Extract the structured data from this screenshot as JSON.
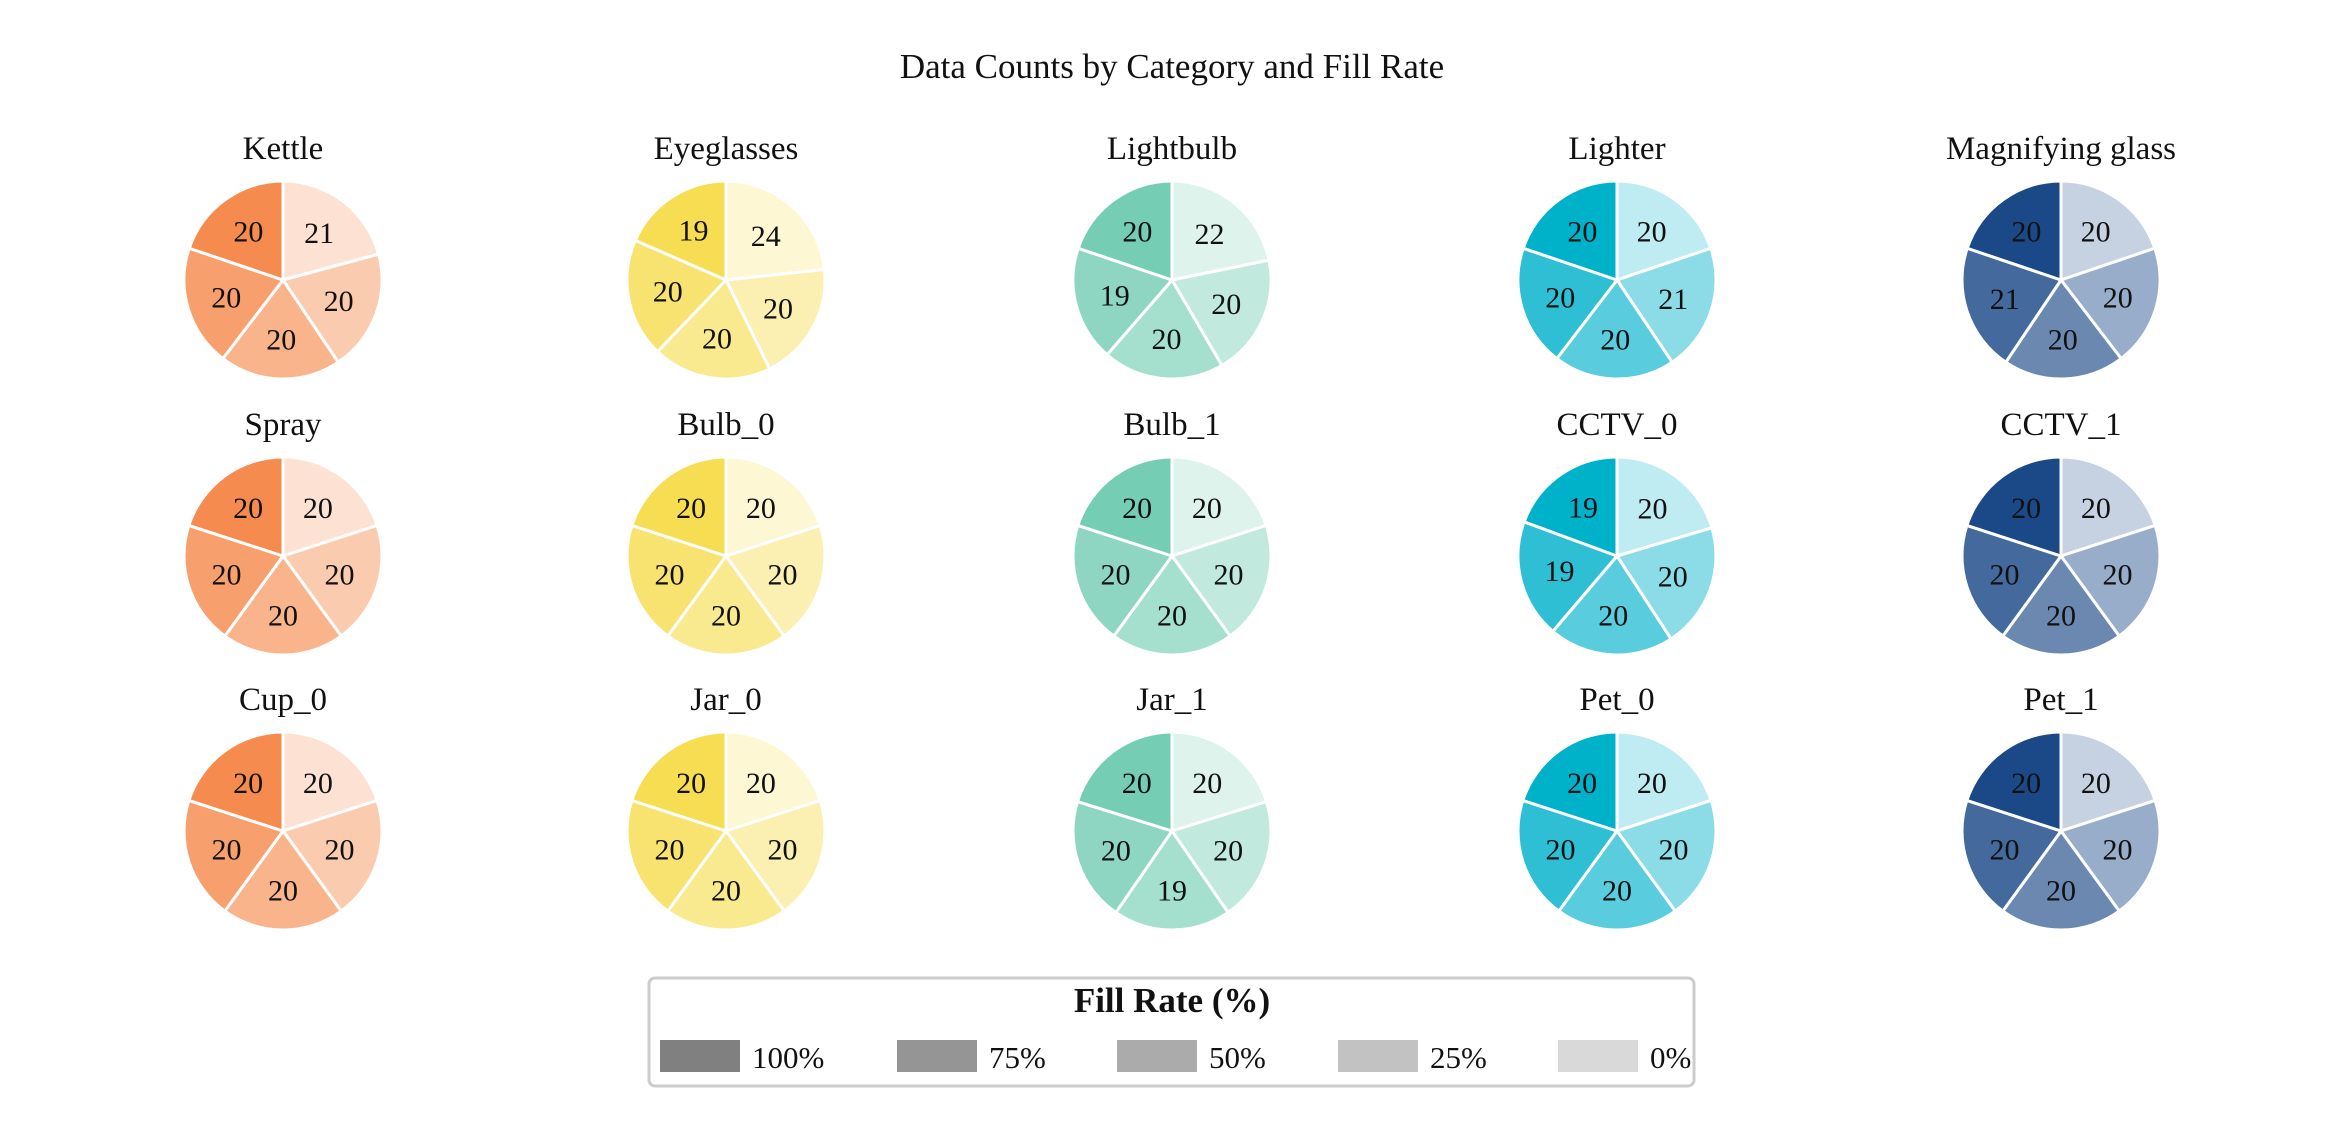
{
  "chart_data": {
    "type": "pie",
    "title": "Data Counts by Category and Fill Rate",
    "slice_order": [
      "0%",
      "25%",
      "50%",
      "75%",
      "100%"
    ],
    "pies": [
      {
        "title": "Kettle",
        "values": [
          21,
          20,
          20,
          20,
          20
        ],
        "color": "#F58B4E"
      },
      {
        "title": "Eyeglasses",
        "values": [
          24,
          20,
          20,
          20,
          19
        ],
        "color": "#F6DD52"
      },
      {
        "title": "Lightbulb",
        "values": [
          22,
          20,
          20,
          19,
          20
        ],
        "color": "#75CDB3"
      },
      {
        "title": "Lighter",
        "values": [
          20,
          21,
          20,
          20,
          20
        ],
        "color": "#00B1CA"
      },
      {
        "title": "Magnifying glass",
        "values": [
          20,
          20,
          20,
          21,
          20
        ],
        "color": "#1B4886"
      },
      {
        "title": "Spray",
        "values": [
          20,
          20,
          20,
          20,
          20
        ],
        "color": "#F58B4E"
      },
      {
        "title": "Bulb_0",
        "values": [
          20,
          20,
          20,
          20,
          20
        ],
        "color": "#F6DD52"
      },
      {
        "title": "Bulb_1",
        "values": [
          20,
          20,
          20,
          20,
          20
        ],
        "color": "#75CDB3"
      },
      {
        "title": "CCTV_0",
        "values": [
          20,
          20,
          20,
          19,
          19
        ],
        "color": "#00B1CA"
      },
      {
        "title": "CCTV_1",
        "values": [
          20,
          20,
          20,
          20,
          20
        ],
        "color": "#1B4886"
      },
      {
        "title": "Cup_0",
        "values": [
          20,
          20,
          20,
          20,
          20
        ],
        "color": "#F58B4E"
      },
      {
        "title": "Jar_0",
        "values": [
          20,
          20,
          20,
          20,
          20
        ],
        "color": "#F6DD52"
      },
      {
        "title": "Jar_1",
        "values": [
          20,
          20,
          19,
          20,
          20
        ],
        "color": "#75CDB3"
      },
      {
        "title": "Pet_0",
        "values": [
          20,
          20,
          20,
          20,
          20
        ],
        "color": "#00B1CA"
      },
      {
        "title": "Pet_1",
        "values": [
          20,
          20,
          20,
          20,
          20
        ],
        "color": "#1B4886"
      }
    ],
    "slice_opacity": [
      0.25,
      0.45,
      0.65,
      0.82,
      1.0
    ],
    "legend": {
      "title": "Fill Rate (%)",
      "position": "bottom-center",
      "items": [
        {
          "label": "100%",
          "color": "#808080"
        },
        {
          "label": "75%",
          "color": "#959595"
        },
        {
          "label": "50%",
          "color": "#ABABAB"
        },
        {
          "label": "25%",
          "color": "#C2C2C2"
        },
        {
          "label": "0%",
          "color": "#D9D9D9"
        }
      ]
    }
  }
}
